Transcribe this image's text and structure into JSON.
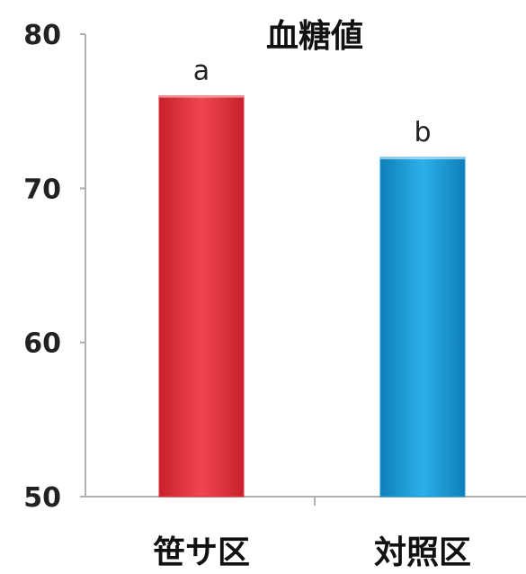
{
  "chart_data": {
    "type": "bar",
    "title": "血糖値",
    "categories": [
      "笹サ区",
      "対照区"
    ],
    "values": [
      76,
      72
    ],
    "annotations": [
      "a",
      "b"
    ],
    "colors": [
      "#e3343d",
      "#1a9ad6"
    ],
    "ylim": [
      50,
      80
    ],
    "yticks": [
      50,
      60,
      70,
      80
    ],
    "xlabel": "",
    "ylabel": "",
    "grid": false,
    "legend": "none"
  }
}
